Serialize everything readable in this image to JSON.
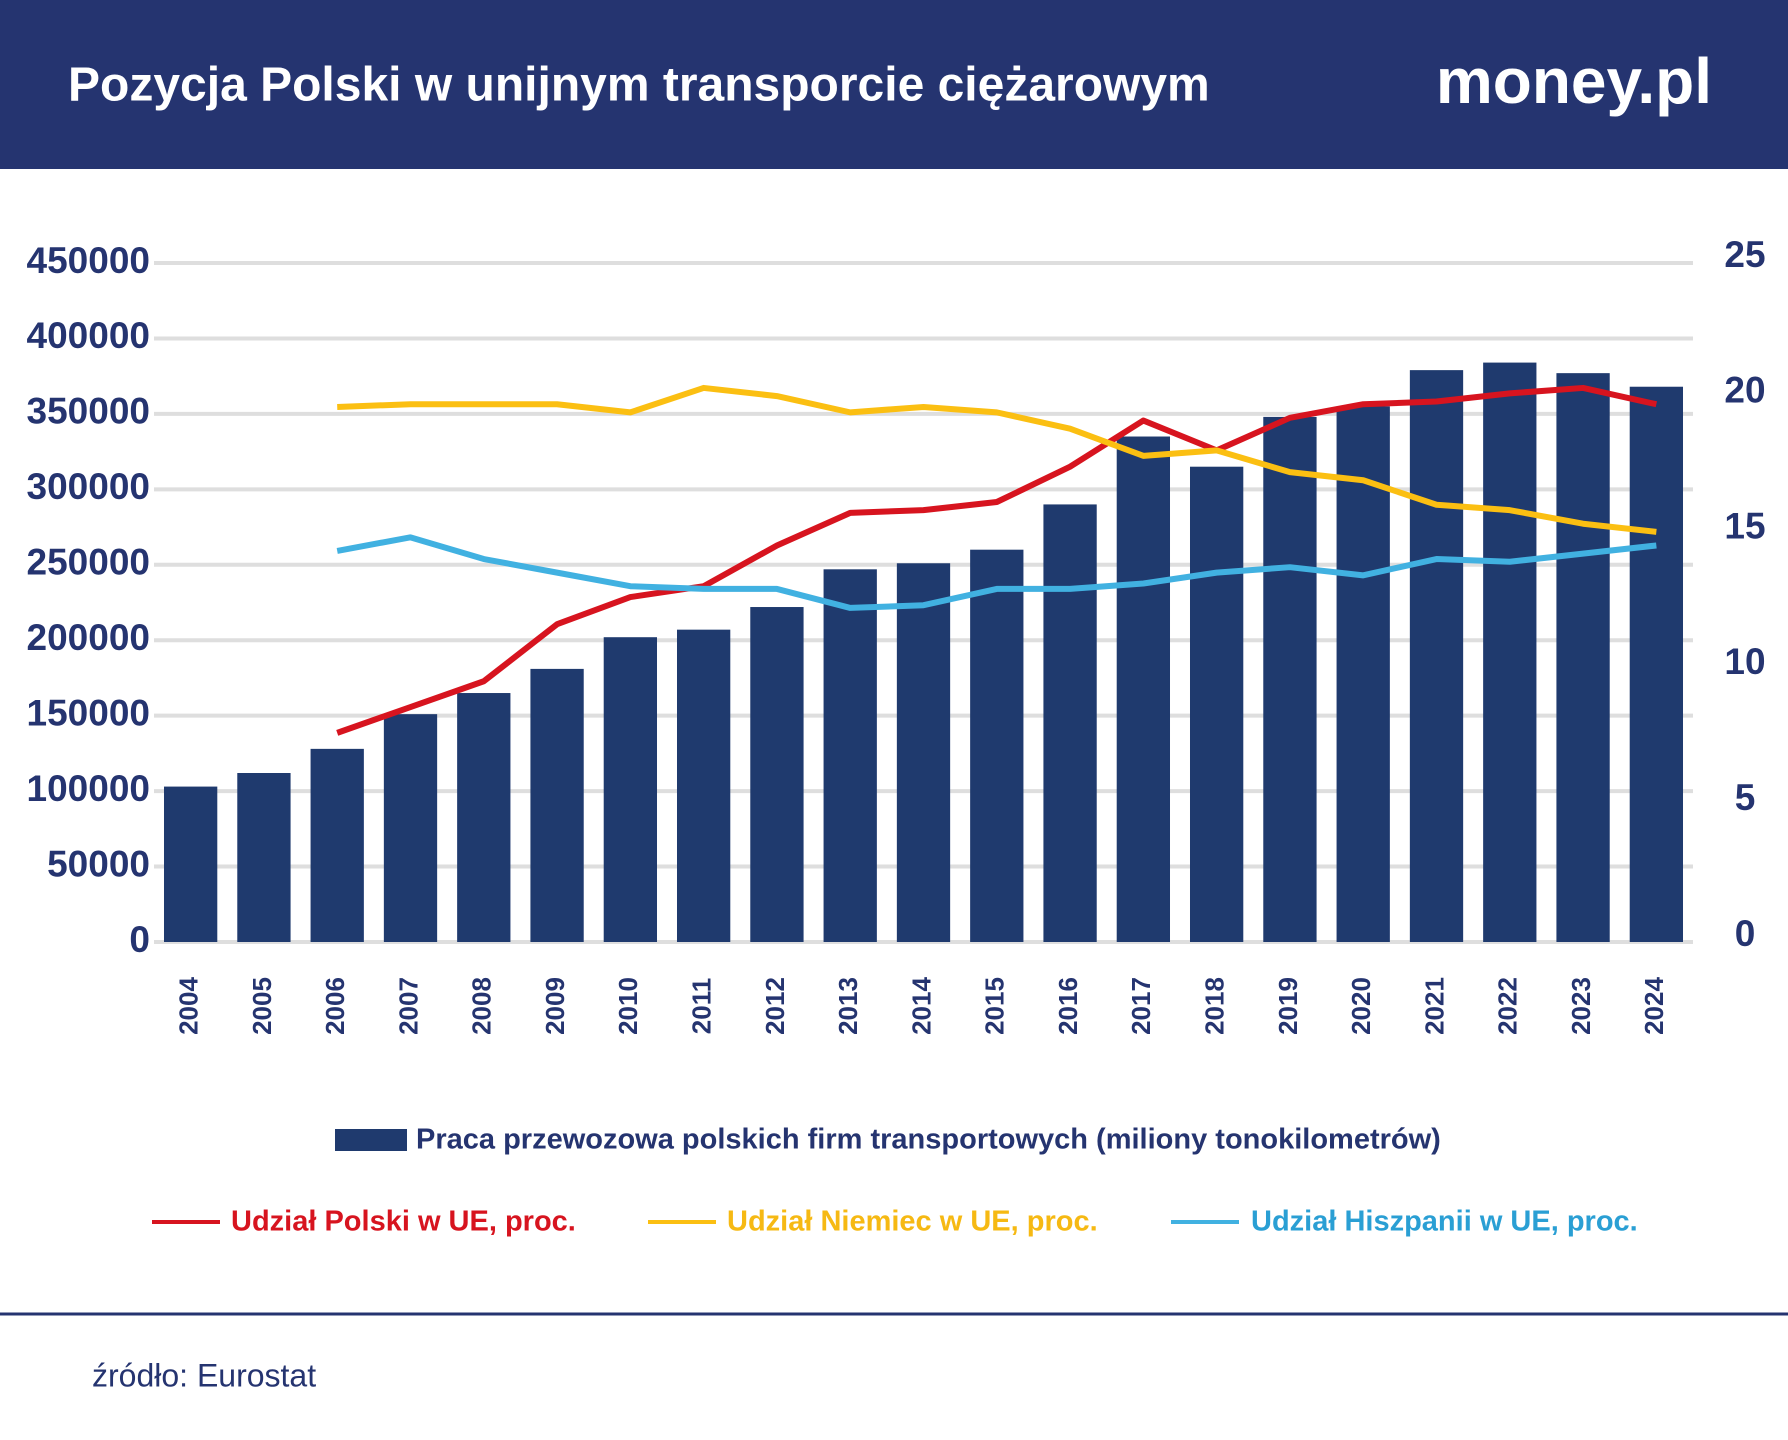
{
  "chart_data": {
    "type": "bar",
    "title": "Pozycja Polski w unijnym transporcie ciężarowym",
    "brand": "money.pl",
    "source": "źródło: Eurostat",
    "categories": [
      "2004",
      "2005",
      "2006",
      "2007",
      "2008",
      "2009",
      "2010",
      "2011",
      "2012",
      "2013",
      "2014",
      "2015",
      "2016",
      "2017",
      "2018",
      "2019",
      "2020",
      "2021",
      "2022",
      "2023",
      "2024"
    ],
    "series": [
      {
        "name": "Praca przewozowa polskich firm transportowych (miliony tonokilometrów)",
        "color": "#1f3a6e",
        "type": "bar",
        "values": [
          103000,
          112000,
          128000,
          151000,
          165000,
          181000,
          202000,
          207000,
          222000,
          247000,
          251000,
          260000,
          290000,
          335000,
          315000,
          348000,
          355000,
          379000,
          384000,
          377000,
          368000
        ]
      },
      {
        "name": "Udział Polski w UE, proc.",
        "color": "#d7141f",
        "type": "line",
        "axis": "y2",
        "values": [
          null,
          null,
          7.7,
          8.65,
          9.6,
          11.7,
          12.7,
          13.1,
          14.6,
          15.8,
          15.9,
          16.2,
          17.5,
          19.2,
          18.1,
          19.3,
          19.8,
          19.9,
          20.2,
          20.4,
          19.8
        ]
      },
      {
        "name": "Udział Niemiec w UE, proc.",
        "color": "#fbbf12",
        "type": "line",
        "axis": "y2",
        "values": [
          null,
          null,
          19.7,
          19.8,
          19.8,
          19.8,
          19.5,
          20.4,
          20.1,
          19.5,
          19.7,
          19.5,
          18.9,
          17.9,
          18.1,
          17.3,
          17.0,
          16.1,
          15.9,
          15.4,
          15.1
        ]
      },
      {
        "name": "Udział Hiszpanii w UE, proc.",
        "color": "#41b1e1",
        "type": "line",
        "axis": "y2",
        "values": [
          null,
          null,
          14.4,
          14.9,
          14.1,
          13.6,
          13.1,
          13.0,
          13.0,
          12.3,
          12.4,
          13.0,
          13.0,
          13.2,
          13.6,
          13.8,
          13.5,
          14.1,
          14.0,
          14.3,
          14.6
        ]
      }
    ],
    "ylim": [
      0,
      450000
    ],
    "yticks": [
      0,
      50000,
      100000,
      150000,
      200000,
      250000,
      300000,
      350000,
      400000,
      450000
    ],
    "y2lim": [
      0,
      25
    ],
    "y2ticks": [
      0,
      5,
      10,
      15,
      20,
      25
    ],
    "grid": true
  }
}
